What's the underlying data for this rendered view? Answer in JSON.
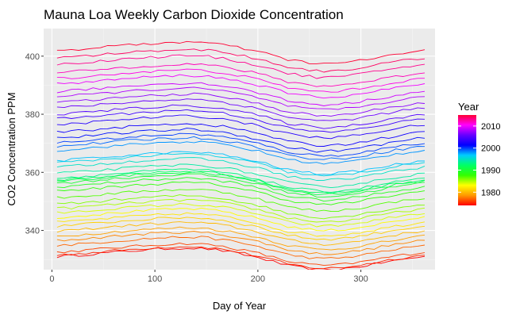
{
  "chart_data": {
    "type": "line",
    "title": "Mauna Loa Weekly Carbon Dioxide Concentration",
    "xlabel": "Day of Year",
    "ylabel": "CO2 Concentration PPM",
    "xlim": [
      -8,
      372
    ],
    "ylim": [
      326.5,
      409.5
    ],
    "x_ticks": [
      0,
      100,
      200,
      300
    ],
    "x_tick_labels": [
      "0",
      "100",
      "200",
      "300"
    ],
    "y_ticks": [
      340,
      360,
      380,
      400
    ],
    "y_tick_labels": [
      "340",
      "360",
      "380",
      "400"
    ],
    "grid": true,
    "background": "#ebebeb",
    "series_note_color_scale": "rainbow by year, red=1974 through magenta to red=2015",
    "year_start": 1974,
    "year_end": 2015,
    "annual_values": [
      331.0,
      331.5,
      332.5,
      334.8,
      336.5,
      338.0,
      339.8,
      341.5,
      342.8,
      344.5,
      346.0,
      347.5,
      349.0,
      351.2,
      353.5,
      355.0,
      356.3,
      357.0,
      357.4,
      358.0,
      359.6,
      361.8,
      363.3,
      364.0,
      367.6,
      369.0,
      370.2,
      371.8,
      373.8,
      376.4,
      378.4,
      380.0,
      382.2,
      384.0,
      386.0,
      387.8,
      390.4,
      392.3,
      394.3,
      397.2,
      399.4,
      401.9
    ],
    "seasonal_shape": {
      "days": [
        5,
        30,
        60,
        90,
        110,
        130,
        150,
        170,
        200,
        230,
        260,
        280,
        300,
        330,
        360
      ],
      "offsets": [
        0.0,
        0.6,
        1.5,
        2.3,
        2.7,
        3.0,
        2.7,
        1.8,
        -0.3,
        -3.2,
        -4.6,
        -4.3,
        -3.4,
        -1.5,
        0.0
      ]
    },
    "legend": {
      "title": "Year",
      "position": "right",
      "range": [
        1974,
        2015
      ],
      "ticks": [
        2010,
        2000,
        1990,
        1980
      ],
      "tick_labels": [
        "2010",
        "2000",
        "1990",
        "1980"
      ],
      "colors_top_to_bottom": [
        "#ff0033",
        "#ff00ff",
        "#6600ff",
        "#0000ff",
        "#00ccff",
        "#00ff66",
        "#33ff00",
        "#ffff00",
        "#ff9900",
        "#ff0000"
      ]
    }
  }
}
